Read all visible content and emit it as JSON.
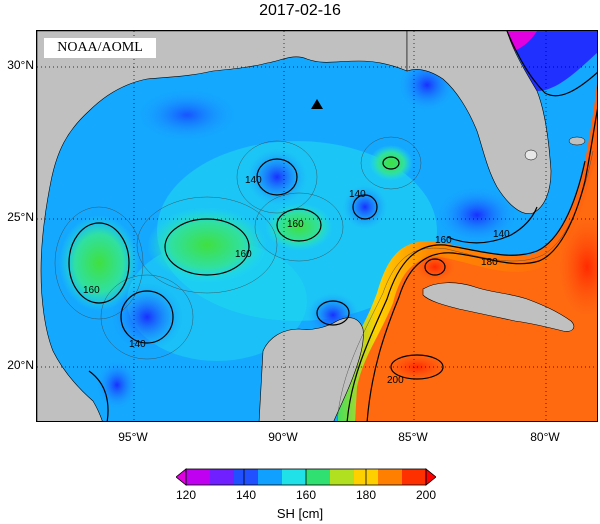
{
  "title": "2017-02-16",
  "credit": "NOAA/AOML",
  "lat_labels": [
    "30°N",
    "25°N",
    "20°N"
  ],
  "lon_labels": [
    "95°W",
    "90°W",
    "85°W",
    "80°W"
  ],
  "colorbar": {
    "ticks": [
      "120",
      "140",
      "160",
      "180",
      "200"
    ],
    "label": "SH [cm]",
    "colors": [
      "#e000e0",
      "#8000ff",
      "#2040ff",
      "#10a0ff",
      "#20e8e8",
      "#30e060",
      "#c0e020",
      "#ffd000",
      "#ff8000",
      "#ff3000"
    ]
  },
  "contour_labels": [
    "140",
    "160",
    "180",
    "200"
  ],
  "colors": {
    "land": "#c0c0c0",
    "ocean_low": "#2a60ff",
    "ocean_mid": "#18b4f0",
    "ocean_high": "#ff5010"
  },
  "marker": "black-triangle"
}
